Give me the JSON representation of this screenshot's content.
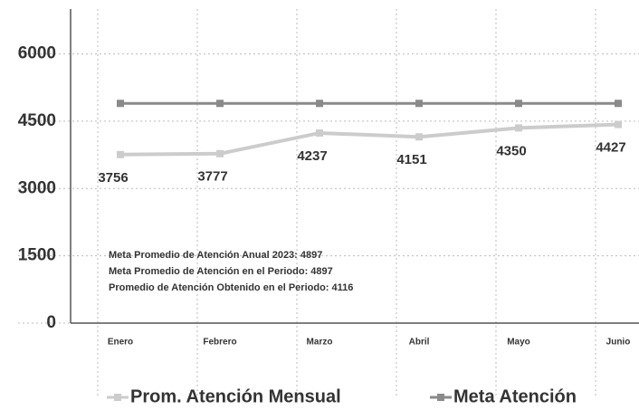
{
  "chart_data": {
    "type": "line",
    "categories": [
      "Enero",
      "Febrero",
      "Marzo",
      "Abril",
      "Mayo",
      "Junio"
    ],
    "series": [
      {
        "name": "Prom. Atención Mensual",
        "color": "#cccccc",
        "values": [
          3756,
          3777,
          4237,
          4151,
          4350,
          4427
        ],
        "show_labels": true
      },
      {
        "name": "Meta Atención",
        "color": "#8a8a8a",
        "values": [
          4897,
          4897,
          4897,
          4897,
          4897,
          4897
        ],
        "show_labels": false
      }
    ],
    "ylim": [
      0,
      7000
    ],
    "yticks": [
      0,
      1500,
      3000,
      4500,
      6000
    ],
    "grid": true,
    "legend": "bottom",
    "annotations": [
      "Meta Promedio de Atención Anual 2023: 4897",
      "Meta Promedio de Atención en el Periodo: 4897",
      "Promedio de Atención Obtenido en el Periodo: 4116"
    ]
  }
}
